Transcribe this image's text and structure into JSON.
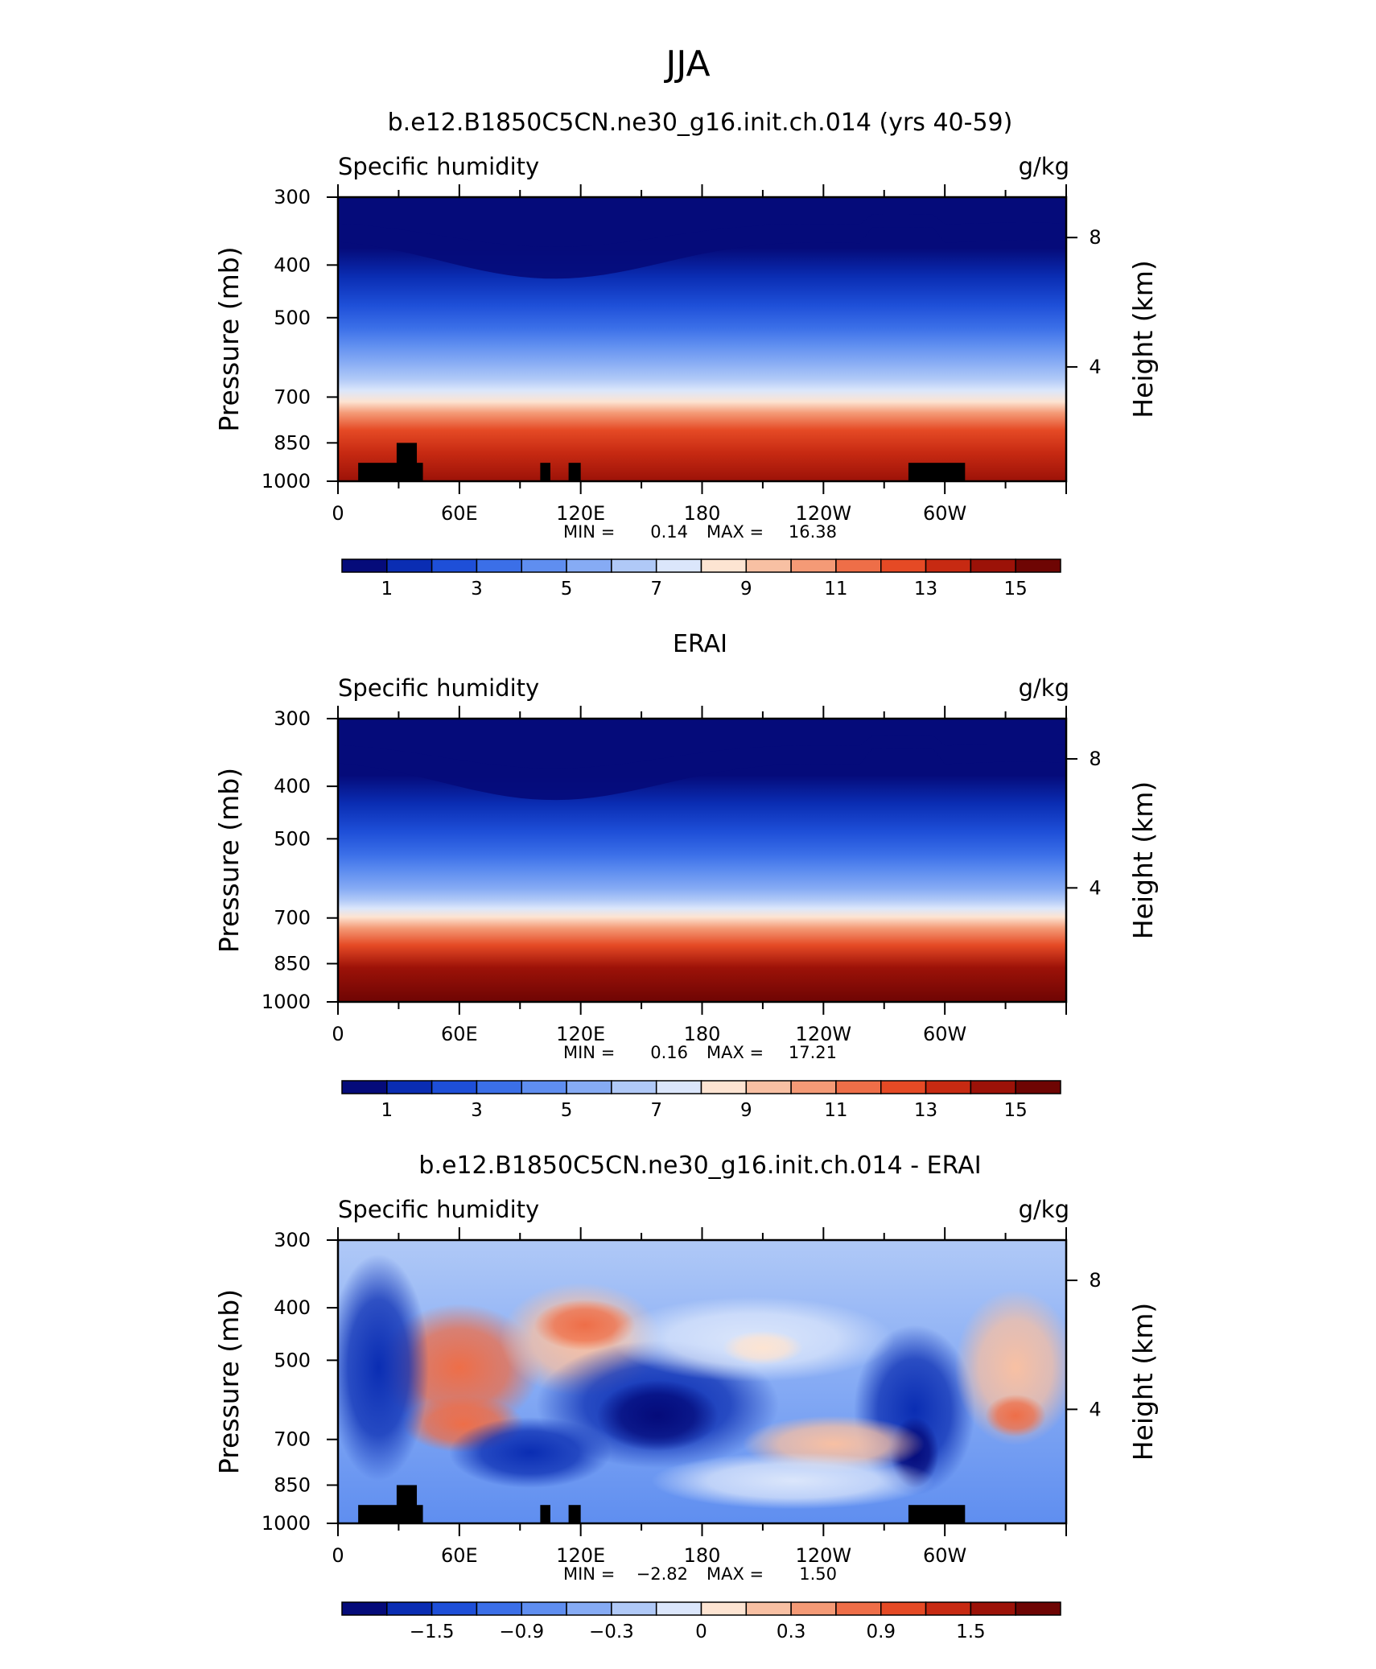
{
  "page": {
    "season_title": "JJA"
  },
  "chart_data": [
    {
      "type": "heatmap",
      "title": "b.e12.B1850C5CN.ne30_g16.init.ch.014 (yrs 40-59)",
      "left_label": "Specific humidity",
      "right_label": "g/kg",
      "ylabel": "Pressure (mb)",
      "ylabel_right": "Height (km)",
      "x_ticks": [
        "0",
        "60E",
        "120E",
        "180",
        "120W",
        "60W"
      ],
      "x_tick_values": [
        0,
        60,
        120,
        180,
        240,
        300
      ],
      "x_range": [
        0,
        360
      ],
      "y_ticks": [
        "300",
        "400",
        "500",
        "700",
        "850",
        "1000"
      ],
      "y_tick_values": [
        300,
        400,
        500,
        700,
        850,
        1000
      ],
      "y_scale": "log",
      "y_range": [
        1000,
        300
      ],
      "right_ticks": [
        "8",
        "4"
      ],
      "right_tick_values": [
        8,
        4
      ],
      "min_label": "MIN =",
      "min_value": "0.14",
      "max_label": "MAX =",
      "max_value": "16.38",
      "colorbar_labels": [
        "1",
        "3",
        "5",
        "7",
        "9",
        "11",
        "13",
        "15"
      ],
      "colorbar_colors": [
        "#050b7a",
        "#0a2db3",
        "#1e4fd8",
        "#3b6fe8",
        "#5f8ef0",
        "#86abf4",
        "#b0c9f7",
        "#dbe6fb",
        "#fde4d2",
        "#f8c0a3",
        "#f49a76",
        "#ee6e48",
        "#e54a25",
        "#c72a12",
        "#9c1208",
        "#6e0503"
      ],
      "terrain": true
    },
    {
      "type": "heatmap",
      "title": "ERAI",
      "left_label": "Specific humidity",
      "right_label": "g/kg",
      "ylabel": "Pressure (mb)",
      "ylabel_right": "Height (km)",
      "x_ticks": [
        "0",
        "60E",
        "120E",
        "180",
        "120W",
        "60W"
      ],
      "x_tick_values": [
        0,
        60,
        120,
        180,
        240,
        300
      ],
      "x_range": [
        0,
        360
      ],
      "y_ticks": [
        "300",
        "400",
        "500",
        "700",
        "850",
        "1000"
      ],
      "y_tick_values": [
        300,
        400,
        500,
        700,
        850,
        1000
      ],
      "y_scale": "log",
      "y_range": [
        1000,
        300
      ],
      "right_ticks": [
        "8",
        "4"
      ],
      "right_tick_values": [
        8,
        4
      ],
      "min_label": "MIN =",
      "min_value": "0.16",
      "max_label": "MAX =",
      "max_value": "17.21",
      "colorbar_labels": [
        "1",
        "3",
        "5",
        "7",
        "9",
        "11",
        "13",
        "15"
      ],
      "colorbar_colors": [
        "#050b7a",
        "#0a2db3",
        "#1e4fd8",
        "#3b6fe8",
        "#5f8ef0",
        "#86abf4",
        "#b0c9f7",
        "#dbe6fb",
        "#fde4d2",
        "#f8c0a3",
        "#f49a76",
        "#ee6e48",
        "#e54a25",
        "#c72a12",
        "#9c1208",
        "#6e0503"
      ],
      "terrain": false
    },
    {
      "type": "heatmap",
      "title": "b.e12.B1850C5CN.ne30_g16.init.ch.014 - ERAI",
      "left_label": "Specific humidity",
      "right_label": "g/kg",
      "ylabel": "Pressure (mb)",
      "ylabel_right": "Height (km)",
      "x_ticks": [
        "0",
        "60E",
        "120E",
        "180",
        "120W",
        "60W"
      ],
      "x_tick_values": [
        0,
        60,
        120,
        180,
        240,
        300
      ],
      "x_range": [
        0,
        360
      ],
      "y_ticks": [
        "300",
        "400",
        "500",
        "700",
        "850",
        "1000"
      ],
      "y_tick_values": [
        300,
        400,
        500,
        700,
        850,
        1000
      ],
      "y_scale": "log",
      "y_range": [
        1000,
        300
      ],
      "right_ticks": [
        "8",
        "4"
      ],
      "right_tick_values": [
        8,
        4
      ],
      "min_label": "MIN =",
      "min_value": "−2.82",
      "max_label": "MAX =",
      "max_value": "1.50",
      "colorbar_labels": [
        "−1.5",
        "−0.9",
        "−0.3",
        "0",
        "0.3",
        "0.9",
        "1.5"
      ],
      "colorbar_colors": [
        "#050b7a",
        "#0a2db3",
        "#1e4fd8",
        "#3b6fe8",
        "#5f8ef0",
        "#86abf4",
        "#b0c9f7",
        "#dbe6fb",
        "#fde4d2",
        "#f8c0a3",
        "#f49a76",
        "#ee6e48",
        "#e54a25",
        "#c72a12",
        "#9c1208",
        "#6e0503"
      ],
      "terrain": true
    }
  ]
}
